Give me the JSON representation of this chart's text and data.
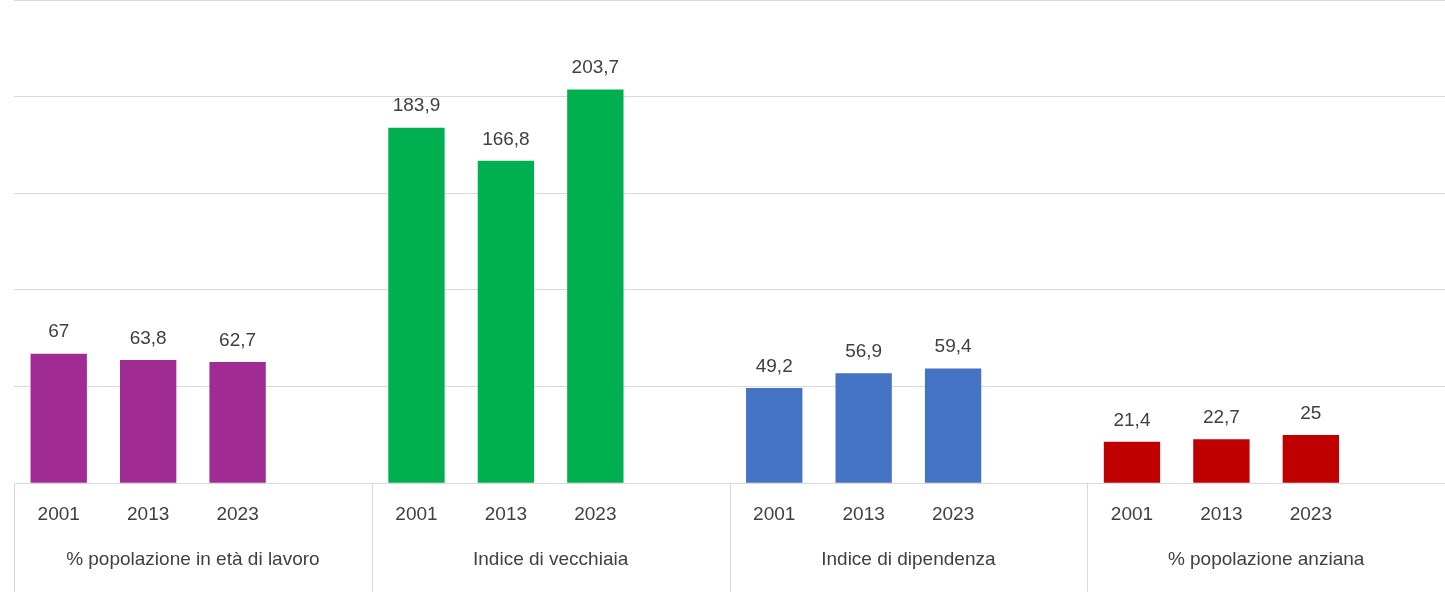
{
  "chart_data": {
    "type": "bar",
    "categories": [
      "2001",
      "2013",
      "2023",
      null,
      "2001",
      "2013",
      "2023",
      null,
      "2001",
      "2013",
      "2023",
      null,
      "2001",
      "2013",
      "2023",
      null
    ],
    "values": [
      67,
      63.8,
      62.7,
      null,
      183.9,
      166.8,
      203.7,
      null,
      49.2,
      56.9,
      59.4,
      null,
      21.4,
      22.7,
      25,
      null
    ],
    "value_labels": [
      "67",
      "63,8",
      "62,7",
      null,
      "183,9",
      "166,8",
      "203,7",
      null,
      "49,2",
      "56,9",
      "59,4",
      null,
      "21,4",
      "22,7",
      "25",
      null
    ],
    "colors": [
      "#a02b93",
      "#a02b93",
      "#a02b93",
      null,
      "#00b050",
      "#00b050",
      "#00b050",
      null,
      "#4472c4",
      "#4472c4",
      "#4472c4",
      null,
      "#c00000",
      "#c00000",
      "#c00000",
      null
    ],
    "annotations": [
      "% popolazione in età di lavoro",
      "Indice di vecchiaia",
      "Indice di dipendenza",
      "% popolazione anziana"
    ],
    "grid": "y",
    "tick_labels": "x",
    "legend": false
  }
}
